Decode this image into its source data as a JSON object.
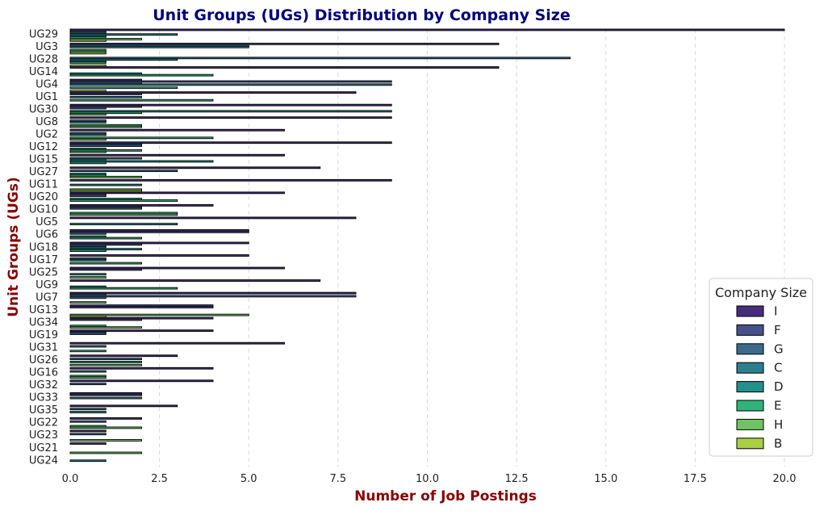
{
  "chart_data": {
    "type": "bar",
    "orientation": "horizontal",
    "title": "Unit Groups (UGs) Distribution by Company Size",
    "xlabel": "Number of Job Postings",
    "ylabel": "Unit Groups (UGs)",
    "xlim": [
      0,
      20
    ],
    "xticks": [
      "0.0",
      "2.5",
      "5.0",
      "7.5",
      "10.0",
      "12.5",
      "15.0",
      "17.5",
      "20.0"
    ],
    "grid": "vertical dashed",
    "legend": {
      "title": "Company Size",
      "placement": "lower-right"
    },
    "categories": [
      "UG29",
      "UG3",
      "UG28",
      "UG14",
      "UG4",
      "UG1",
      "UG30",
      "UG8",
      "UG2",
      "UG12",
      "UG15",
      "UG27",
      "UG11",
      "UG20",
      "UG10",
      "UG5",
      "UG6",
      "UG18",
      "UG17",
      "UG25",
      "UG9",
      "UG7",
      "UG13",
      "UG34",
      "UG19",
      "UG31",
      "UG26",
      "UG16",
      "UG32",
      "UG33",
      "UG35",
      "UG22",
      "UG23",
      "UG21",
      "UG24"
    ],
    "series": [
      {
        "name": "I",
        "color": "#472d7b",
        "values": [
          20,
          0,
          0,
          12,
          2,
          8,
          9,
          9,
          6,
          9,
          6,
          7,
          9,
          6,
          4,
          8,
          5,
          5,
          5,
          6,
          7,
          8,
          4,
          4,
          4,
          6,
          3,
          4,
          4,
          2,
          3,
          2,
          1,
          1,
          0
        ]
      },
      {
        "name": "F",
        "color": "#46508a",
        "values": [
          1,
          12,
          0,
          0,
          9,
          2,
          2,
          0,
          0,
          2,
          0,
          0,
          0,
          1,
          2,
          0,
          5,
          2,
          0,
          2,
          0,
          1,
          4,
          2,
          1,
          0,
          0,
          0,
          0,
          2,
          0,
          0,
          0,
          0,
          0
        ]
      },
      {
        "name": "G",
        "color": "#3b6a8c",
        "values": [
          1,
          5,
          14,
          0,
          2,
          0,
          1,
          1,
          1,
          2,
          2,
          3,
          0,
          1,
          2,
          0,
          1,
          1,
          1,
          0,
          0,
          8,
          0,
          0,
          1,
          1,
          2,
          1,
          1,
          0,
          1,
          1,
          1,
          0,
          0
        ]
      },
      {
        "name": "C",
        "color": "#2c7f8e",
        "values": [
          3,
          5,
          3,
          0,
          9,
          2,
          0,
          1,
          1,
          0,
          1,
          0,
          2,
          0,
          0,
          0,
          0,
          1,
          1,
          0,
          0,
          1,
          0,
          0,
          0,
          0,
          0,
          0,
          0,
          2,
          0,
          0,
          0,
          0,
          1
        ]
      },
      {
        "name": "D",
        "color": "#21918c",
        "values": [
          1,
          0,
          1,
          2,
          0,
          0,
          9,
          0,
          0,
          1,
          4,
          1,
          0,
          2,
          0,
          3,
          1,
          2,
          0,
          1,
          1,
          0,
          0,
          0,
          0,
          0,
          2,
          0,
          0,
          0,
          1,
          0,
          0,
          0,
          0
        ]
      },
      {
        "name": "E",
        "color": "#2fb47c",
        "values": [
          1,
          1,
          1,
          4,
          3,
          4,
          2,
          2,
          4,
          2,
          1,
          1,
          0,
          3,
          3,
          0,
          2,
          1,
          2,
          0,
          3,
          0,
          0,
          1,
          0,
          1,
          0,
          1,
          0,
          0,
          0,
          1,
          0,
          0,
          0
        ]
      },
      {
        "name": "H",
        "color": "#6fc461",
        "values": [
          2,
          1,
          0,
          0,
          0,
          0,
          1,
          2,
          1,
          1,
          0,
          2,
          2,
          0,
          3,
          0,
          0,
          0,
          0,
          1,
          0,
          1,
          5,
          2,
          0,
          0,
          2,
          1,
          0,
          0,
          0,
          2,
          2,
          2,
          0
        ]
      },
      {
        "name": "B",
        "color": "#a8cf45",
        "values": [
          1,
          1,
          1,
          0,
          1,
          0,
          0,
          0,
          0,
          0,
          0,
          0,
          2,
          0,
          0,
          0,
          0,
          0,
          0,
          0,
          0,
          0,
          1,
          0,
          0,
          0,
          0,
          0,
          0,
          0,
          0,
          0,
          0,
          0,
          0
        ]
      }
    ]
  }
}
